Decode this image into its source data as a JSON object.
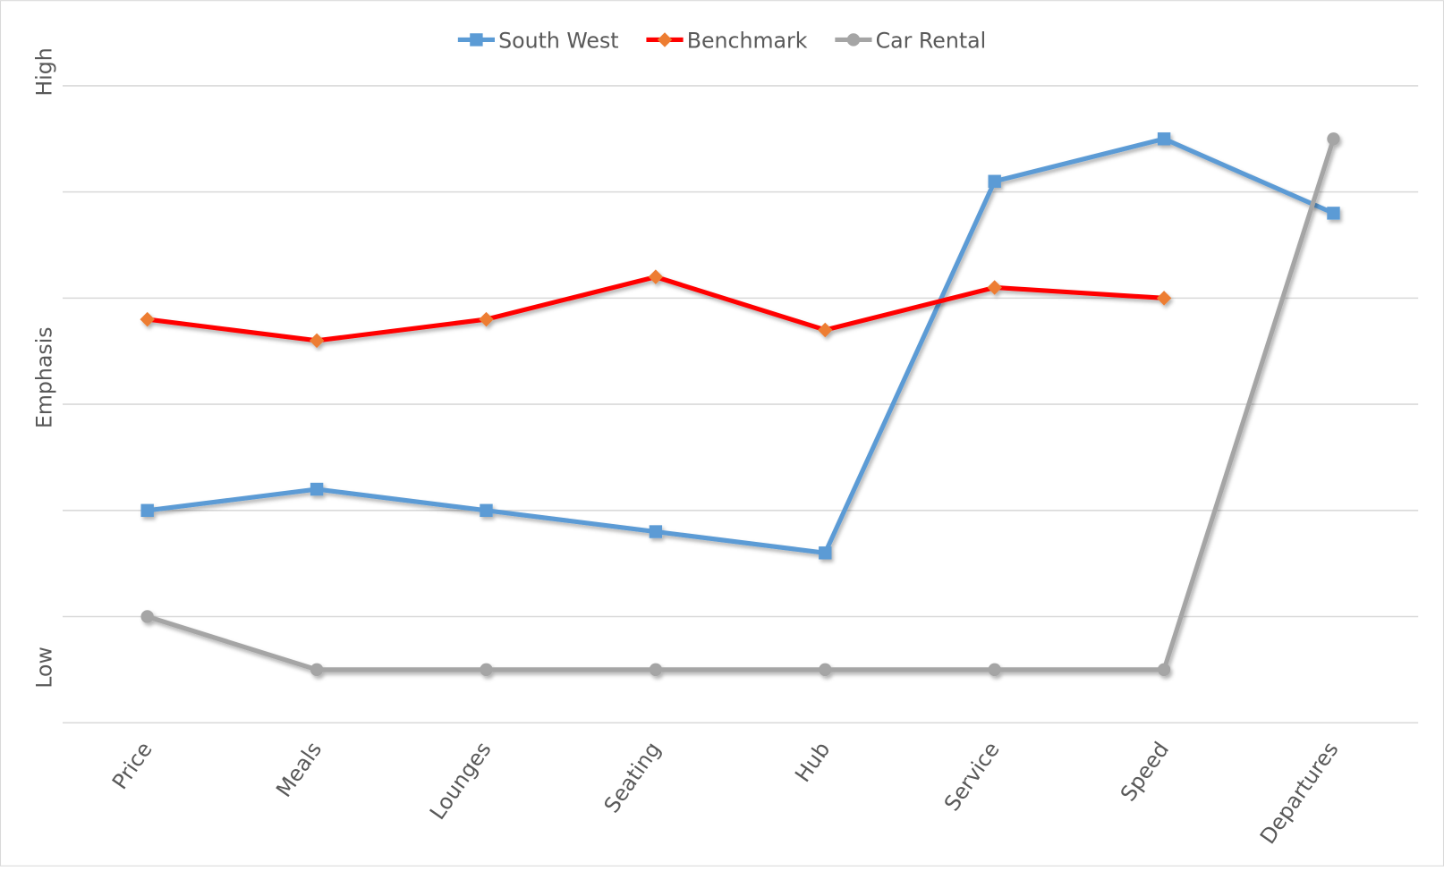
{
  "chart_data": {
    "type": "line",
    "y_labels": [
      "High",
      "Emphasis",
      "Low"
    ],
    "categories": [
      "Price",
      "Meals",
      "Lounges",
      "Seating",
      "Hub",
      "Service",
      "Speed",
      "Departures"
    ],
    "series": [
      {
        "name": "South West",
        "color": "#5b9bd5",
        "marker_color": "#5b9bd5",
        "marker": "square",
        "values": [
          2.0,
          2.2,
          2.0,
          1.8,
          1.6,
          5.1,
          5.5,
          4.8
        ]
      },
      {
        "name": "Benchmark",
        "color": "#ff0000",
        "marker_color": "#ed7d31",
        "marker": "diamond",
        "values": [
          3.8,
          3.6,
          3.8,
          4.2,
          3.7,
          4.1,
          4.0,
          null
        ]
      },
      {
        "name": "Car Rental",
        "color": "#a5a5a5",
        "marker_color": "#a5a5a5",
        "marker": "circle",
        "values": [
          1.0,
          0.5,
          0.5,
          0.5,
          0.5,
          0.5,
          0.5,
          5.5
        ]
      }
    ],
    "ylim": [
      0,
      6
    ],
    "yticks": [
      0,
      1,
      2,
      3,
      4,
      5,
      6
    ],
    "grid": true,
    "legend": "top"
  }
}
